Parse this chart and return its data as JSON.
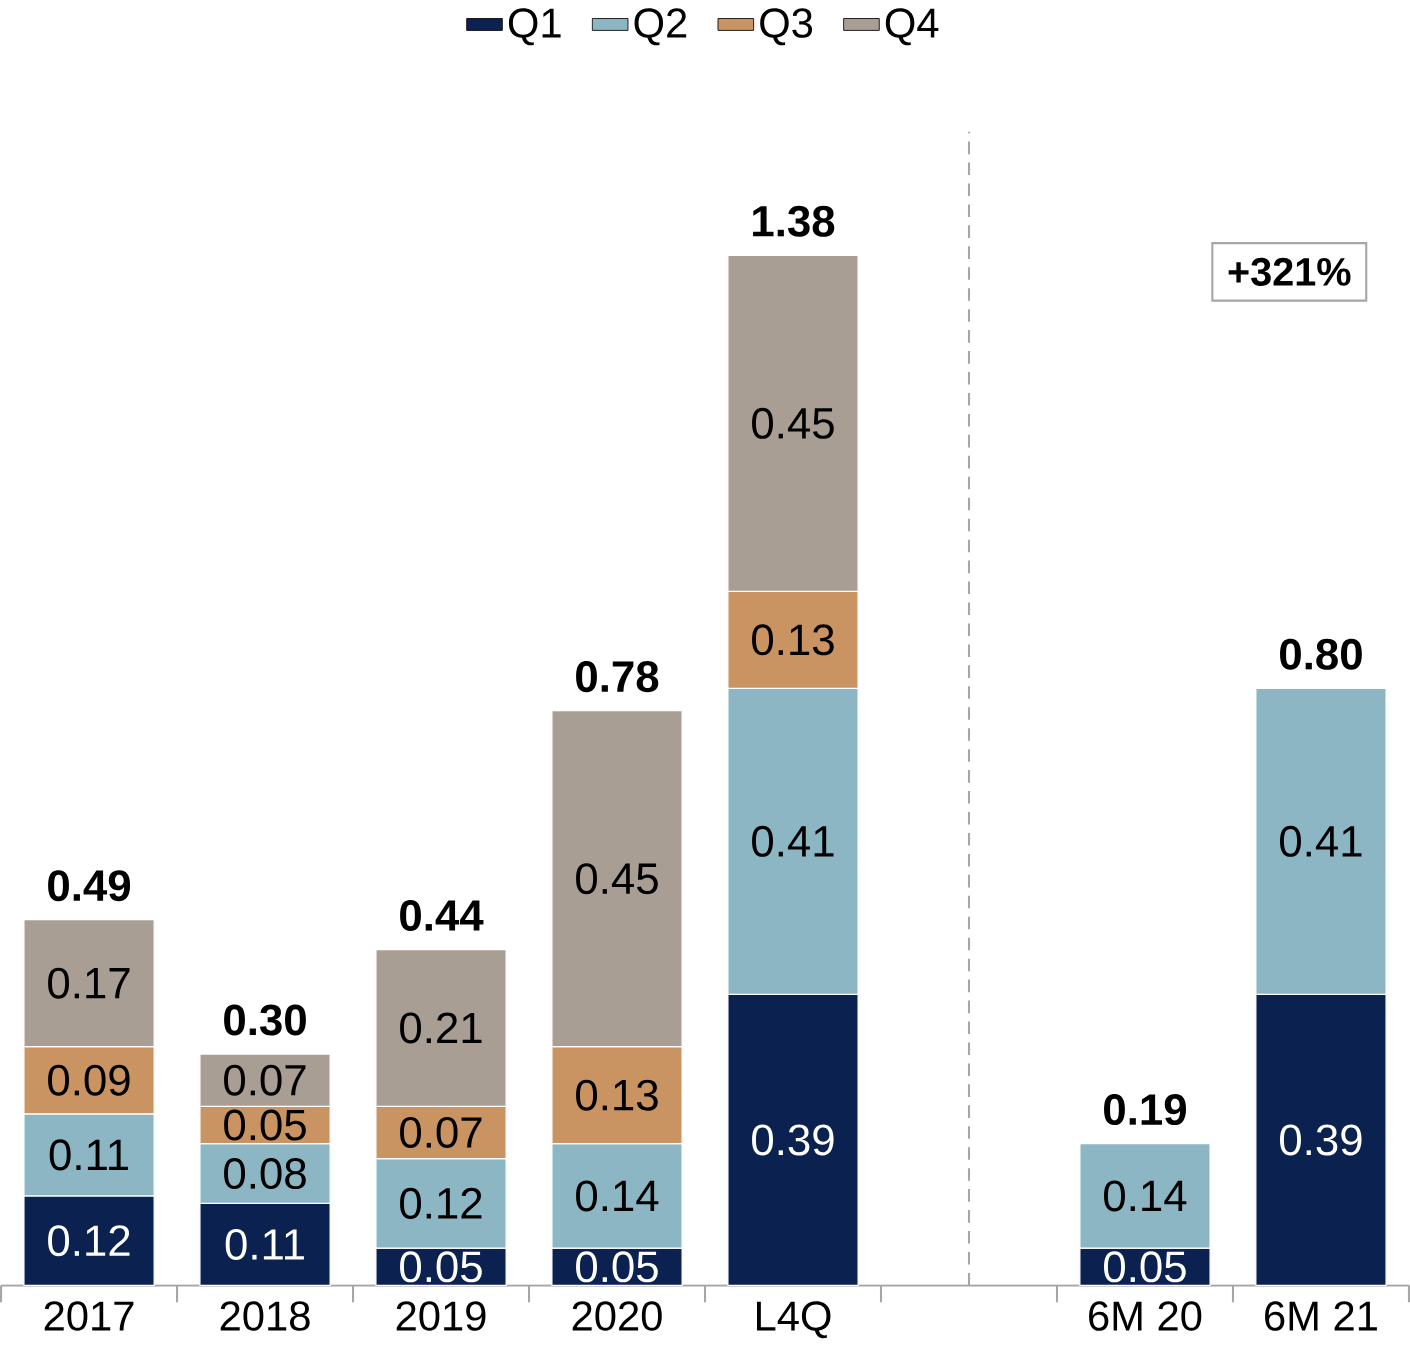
{
  "chart_data": {
    "type": "bar",
    "stacked": true,
    "data_labels": true,
    "legend": "top",
    "categories": [
      "2017",
      "2018",
      "2019",
      "2020",
      "L4Q",
      null,
      "6M 20",
      "6M 21"
    ],
    "series": [
      {
        "name": "Q1",
        "color": "#0b2150",
        "values": [
          0.12,
          0.11,
          0.05,
          0.05,
          0.39,
          null,
          0.05,
          0.39
        ]
      },
      {
        "name": "Q2",
        "color": "#8cb6c4",
        "values": [
          0.11,
          0.08,
          0.12,
          0.14,
          0.41,
          null,
          0.14,
          0.41
        ]
      },
      {
        "name": "Q3",
        "color": "#c99462",
        "values": [
          0.09,
          0.05,
          0.07,
          0.13,
          0.13,
          null,
          null,
          null
        ]
      },
      {
        "name": "Q4",
        "color": "#a89e94",
        "values": [
          0.17,
          0.07,
          0.21,
          0.45,
          0.45,
          null,
          null,
          null
        ]
      }
    ],
    "totals": [
      "0.49",
      "0.30",
      "0.44",
      "0.78",
      "1.38",
      null,
      "0.19",
      "0.80"
    ],
    "ref_lines": [
      {
        "axis": "x",
        "line_style": "dashed",
        "color": "#a6a6a6"
      }
    ],
    "annotations": [
      "+321%"
    ]
  }
}
